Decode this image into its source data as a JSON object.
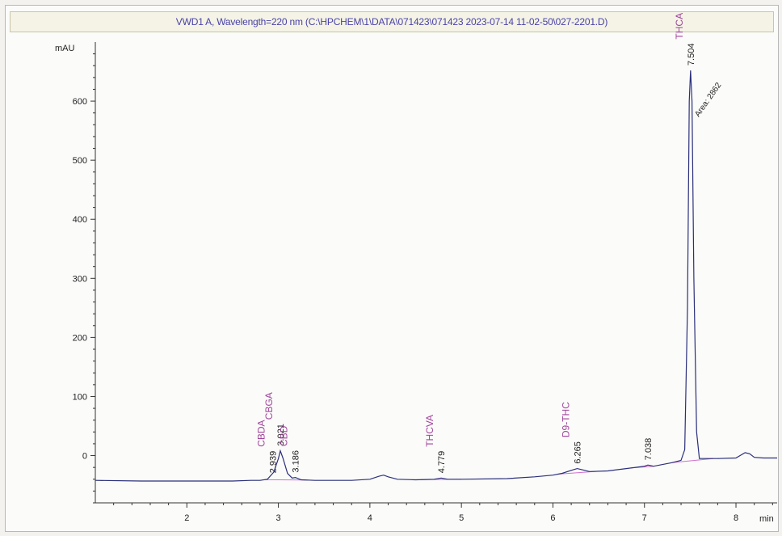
{
  "window": {
    "title": "VWD1 A, Wavelength=220 nm (C:\\HPCHEM\\1\\DATA\\071423\\071423 2023-07-14 11-02-50\\027-2201.D)"
  },
  "chart_data": {
    "type": "line",
    "title": "VWD1 A, Wavelength=220 nm (C:\\HPCHEM\\1\\DATA\\071423\\071423 2023-07-14 11-02-50\\027-2201.D)",
    "xlabel": "min",
    "ylabel": "mAU",
    "xlim": [
      1.0,
      8.45
    ],
    "ylim": [
      -80,
      700
    ],
    "x_ticks": [
      2,
      3,
      4,
      5,
      6,
      7,
      8
    ],
    "y_ticks": [
      0,
      100,
      200,
      300,
      400,
      500,
      600
    ],
    "grid": false,
    "line_color": "#2b2f7a",
    "baseline_color": "#d26fcf",
    "series": [
      {
        "x": [
          1.0,
          1.5,
          2.0,
          2.5,
          2.7,
          2.8,
          2.88,
          2.95,
          3.0,
          3.021,
          3.05,
          3.1,
          3.15,
          3.186,
          3.25,
          3.4,
          3.8,
          4.0,
          4.1,
          4.15,
          4.2,
          4.3,
          4.5,
          4.7,
          4.779,
          4.85,
          5.0,
          5.5,
          5.8,
          6.0,
          6.1,
          6.2,
          6.265,
          6.32,
          6.4,
          6.6,
          6.8,
          7.0,
          7.038,
          7.1,
          7.3,
          7.4,
          7.44,
          7.47,
          7.49,
          7.504,
          7.52,
          7.54,
          7.57,
          7.6,
          7.7,
          7.8,
          8.0,
          8.1,
          8.15,
          8.2,
          8.3,
          8.45
        ],
        "y": [
          -42,
          -43,
          -43,
          -43,
          -42,
          -42,
          -40,
          -28,
          -5,
          8,
          -4,
          -30,
          -38,
          -37,
          -41,
          -42,
          -42,
          -40,
          -35,
          -33,
          -36,
          -40,
          -41,
          -40,
          -38,
          -40,
          -40,
          -39,
          -36,
          -33,
          -30,
          -25,
          -22,
          -24,
          -27,
          -26,
          -22,
          -18,
          -16,
          -18,
          -12,
          -8,
          10,
          250,
          600,
          652,
          600,
          300,
          40,
          -5,
          -5,
          -5,
          -4,
          5,
          3,
          -3,
          -4,
          -4
        ]
      }
    ],
    "peaks": [
      {
        "rt": "2.939",
        "name": "CBDA",
        "x": 2.939,
        "y": -38
      },
      {
        "rt": "3.021",
        "name": "CBGA",
        "x": 3.021,
        "y": 8
      },
      {
        "rt": "3.186",
        "name": "CBD",
        "x": 3.186,
        "y": -37
      },
      {
        "rt": "4.779",
        "name": "THCVA",
        "x": 4.779,
        "y": -38
      },
      {
        "rt": "6.265",
        "name": "D9-THC",
        "x": 6.265,
        "y": -22
      },
      {
        "rt": "7.038",
        "name": "",
        "x": 7.038,
        "y": -16
      },
      {
        "rt": "7.504",
        "name": "THCA",
        "x": 7.504,
        "y": 652
      }
    ],
    "annotations": [
      {
        "text": "Area: 2862",
        "x": 7.504,
        "y": 652
      }
    ]
  }
}
